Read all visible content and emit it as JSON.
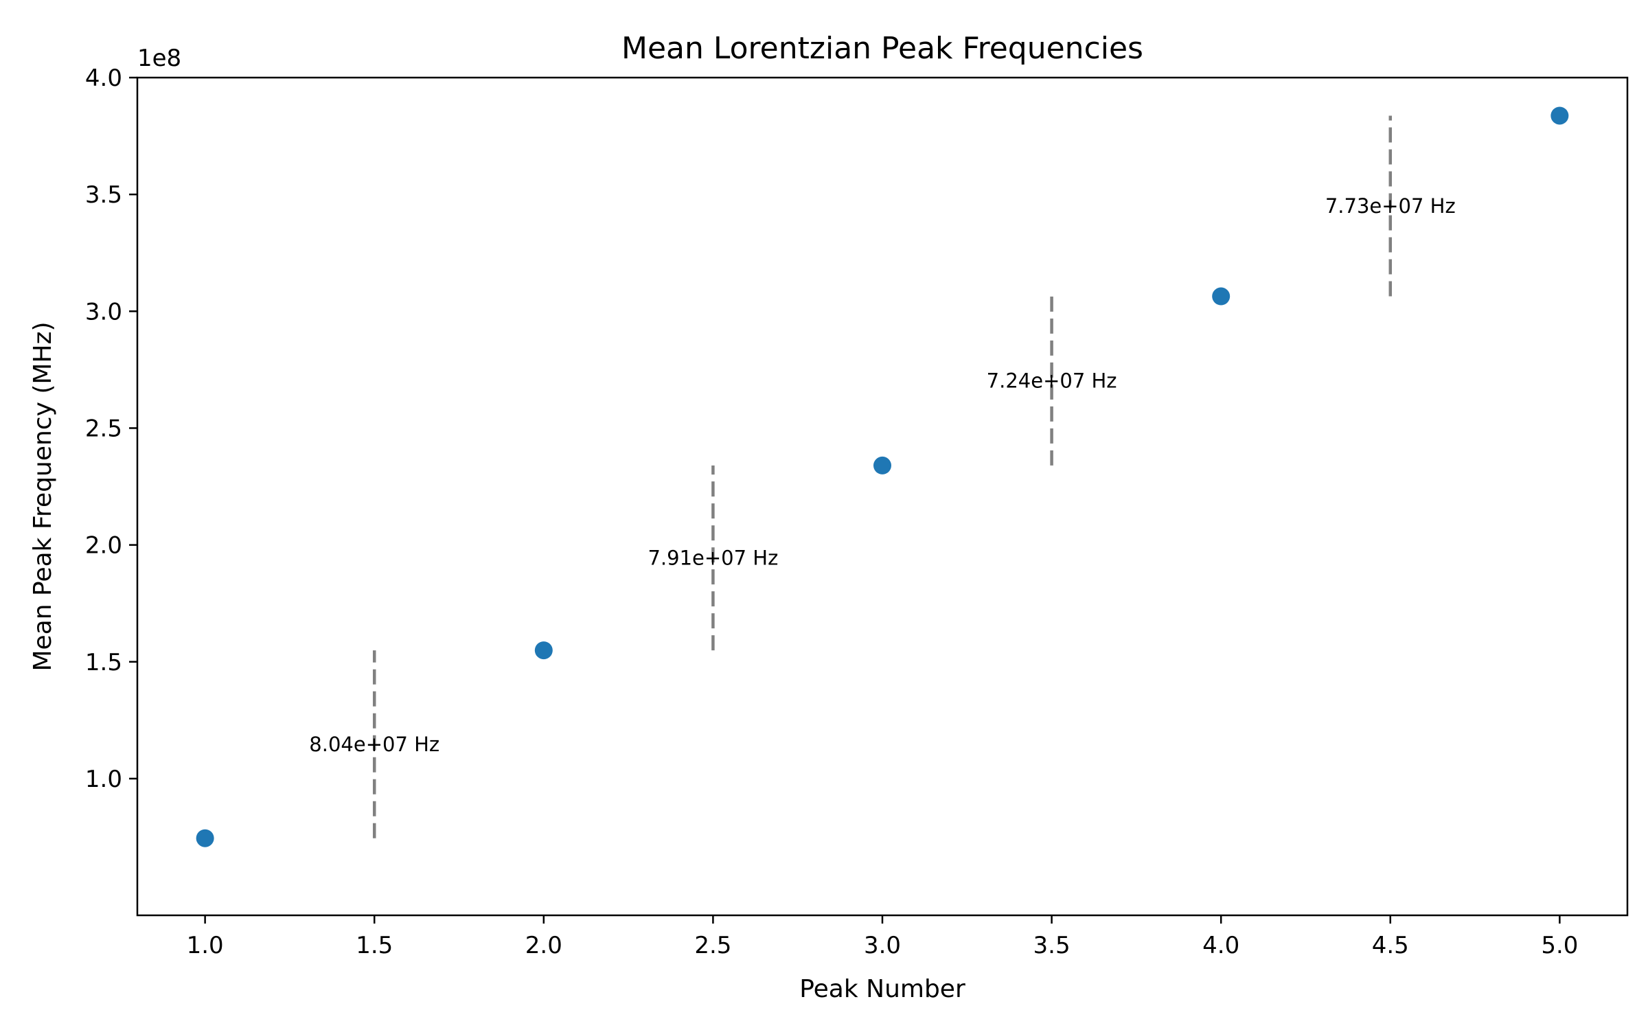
{
  "chart_data": {
    "type": "scatter",
    "title": "Mean Lorentzian Peak Frequencies",
    "xlabel": "Peak Number",
    "ylabel": "Mean Peak Frequency (MHz)",
    "y_offset_label": "1e8",
    "xlim": [
      0.8,
      5.2
    ],
    "ylim": [
      0.415,
      4.0
    ],
    "x_ticks": [
      1.0,
      1.5,
      2.0,
      2.5,
      3.0,
      3.5,
      4.0,
      4.5,
      5.0
    ],
    "x_tick_labels": [
      "1.0",
      "1.5",
      "2.0",
      "2.5",
      "3.0",
      "3.5",
      "4.0",
      "4.5",
      "5.0"
    ],
    "y_ticks": [
      1.0,
      1.5,
      2.0,
      2.5,
      3.0,
      3.5,
      4.0
    ],
    "y_tick_labels": [
      "1.0",
      "1.5",
      "2.0",
      "2.5",
      "3.0",
      "3.5",
      "4.0"
    ],
    "grid": false,
    "marker_color": "#1f77b4",
    "spacing_line_color": "#808080",
    "points": [
      {
        "x": 1,
        "y": 0.745
      },
      {
        "x": 2,
        "y": 1.549
      },
      {
        "x": 3,
        "y": 2.34
      },
      {
        "x": 4,
        "y": 3.064
      },
      {
        "x": 5,
        "y": 3.837
      }
    ],
    "spacings": [
      {
        "x": 1.5,
        "y_start": 0.745,
        "y_end": 1.549,
        "label": "8.04e+07 Hz"
      },
      {
        "x": 2.5,
        "y_start": 1.549,
        "y_end": 2.34,
        "label": "7.91e+07 Hz"
      },
      {
        "x": 3.5,
        "y_start": 2.34,
        "y_end": 3.064,
        "label": "7.24e+07 Hz"
      },
      {
        "x": 4.5,
        "y_start": 3.064,
        "y_end": 3.837,
        "label": "7.73e+07 Hz"
      }
    ]
  }
}
